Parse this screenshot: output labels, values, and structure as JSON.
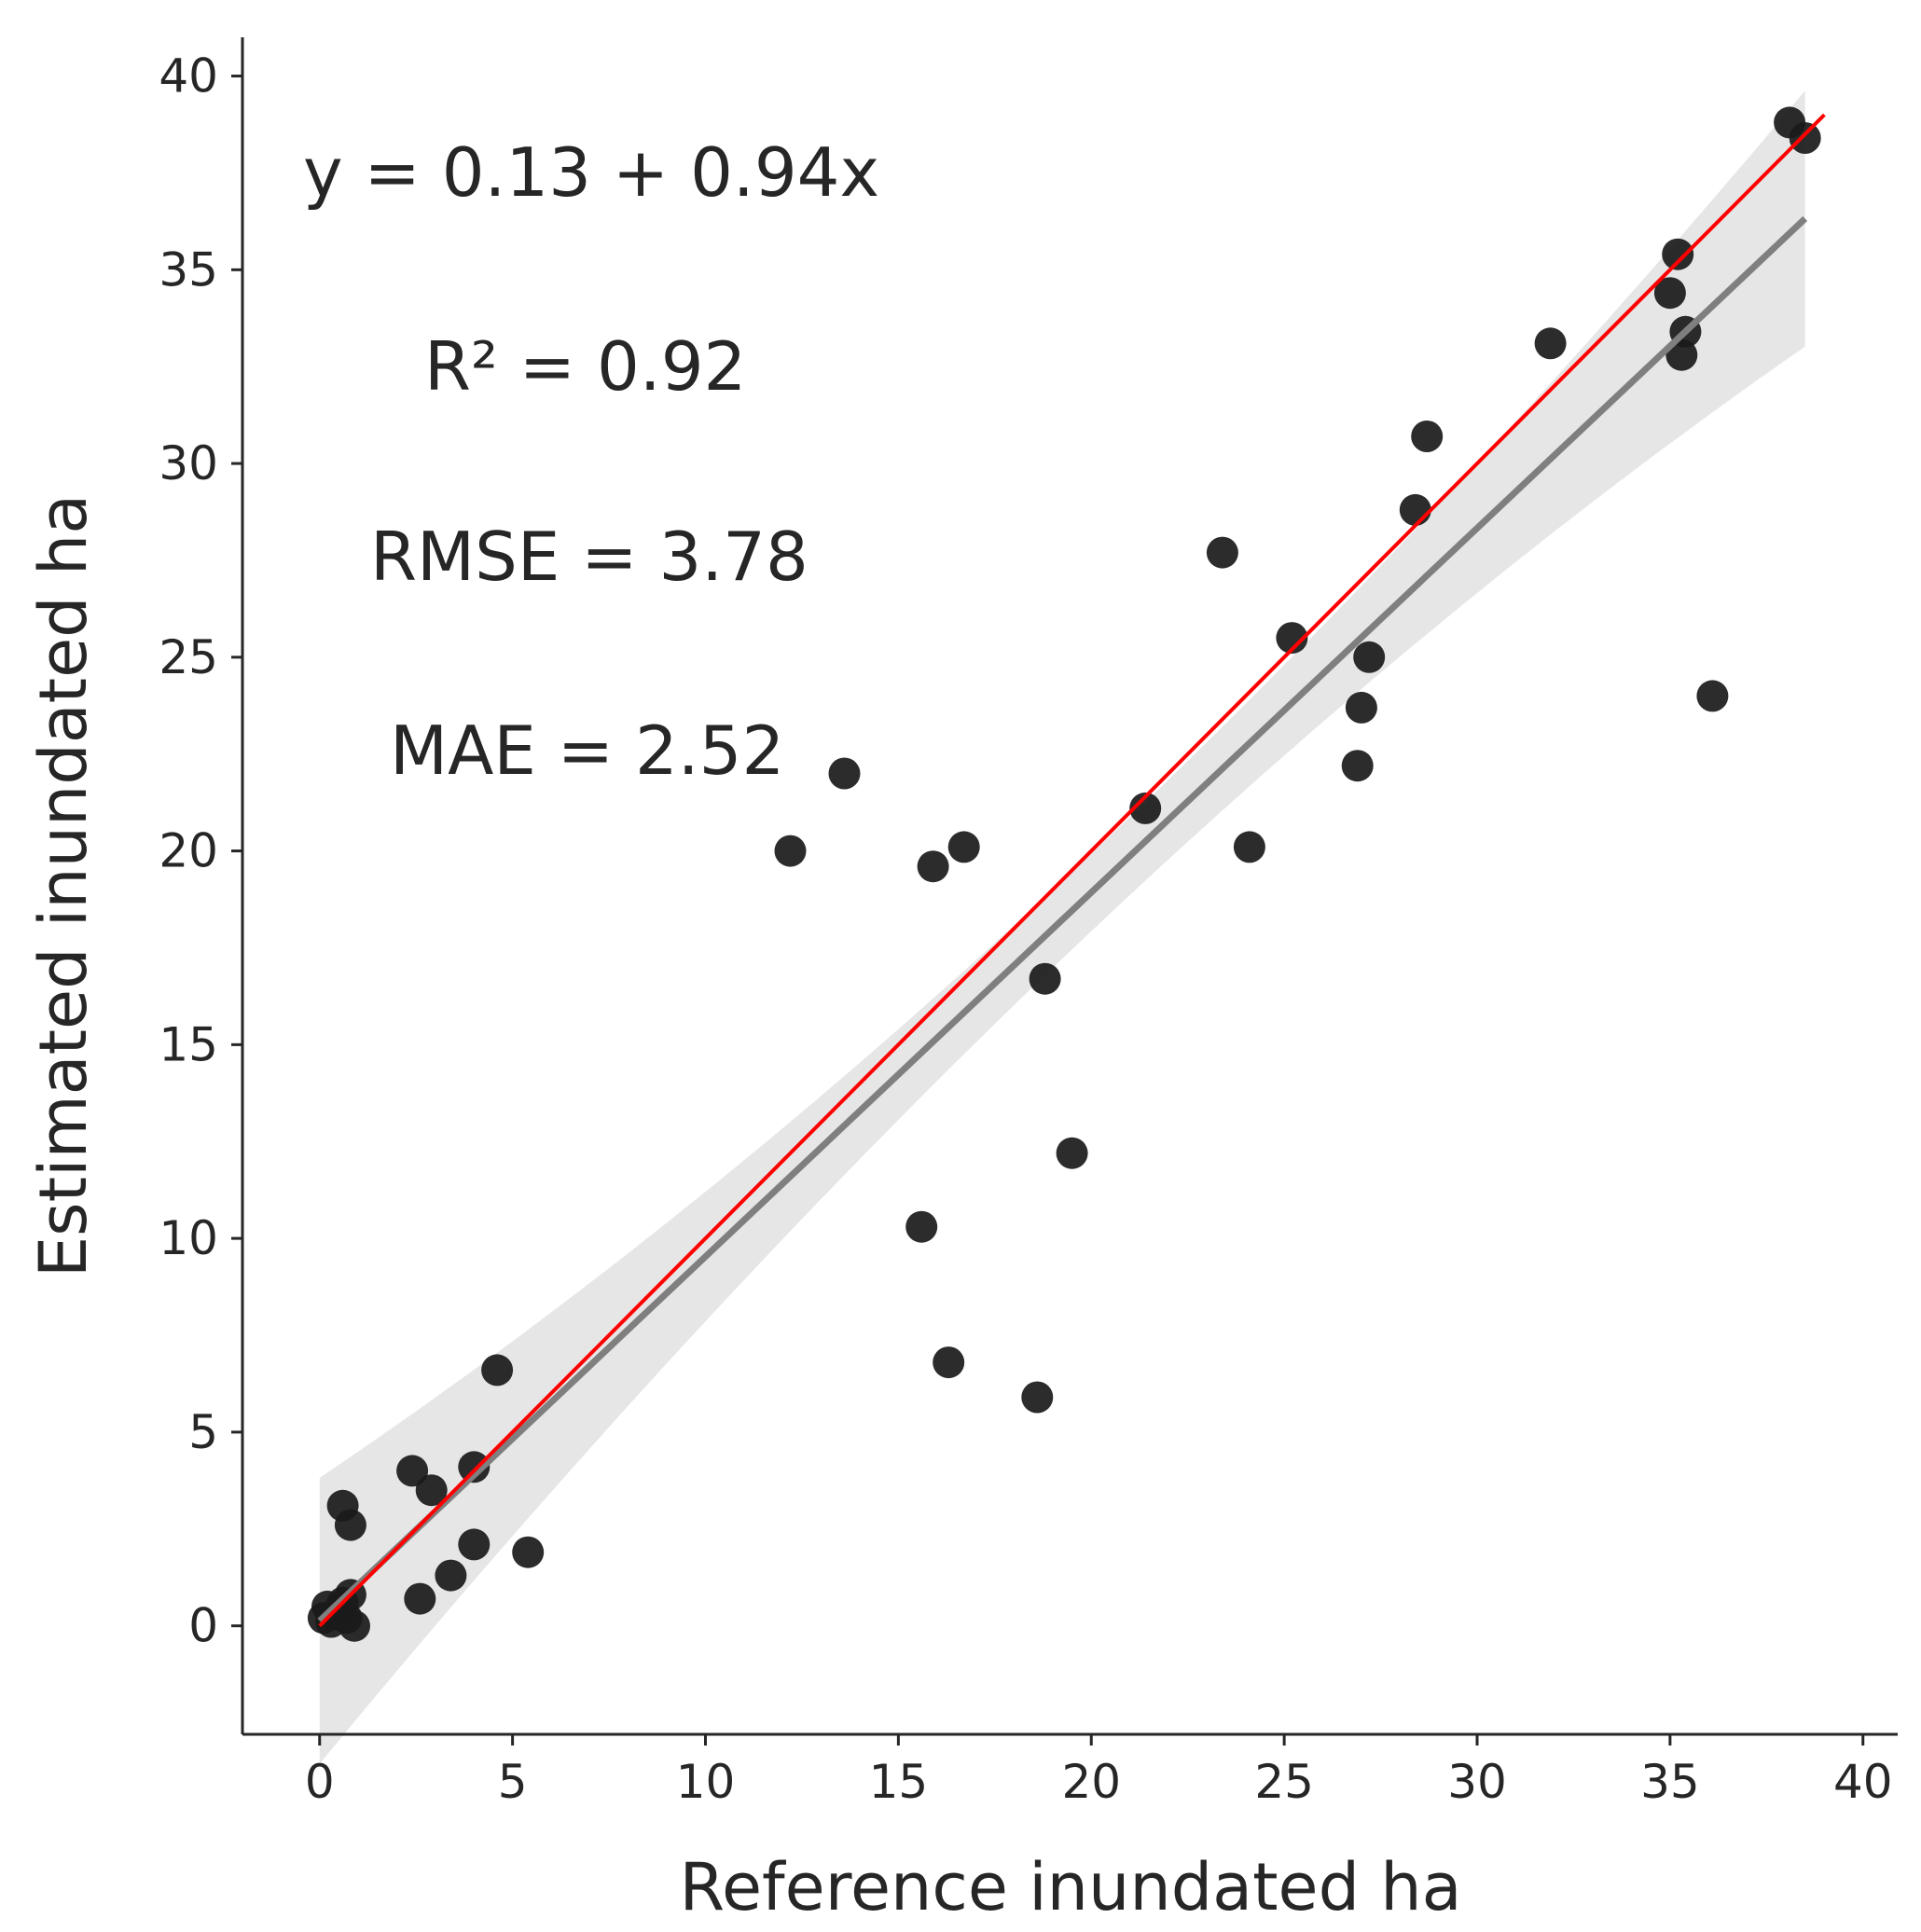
{
  "chart_data": {
    "type": "scatter",
    "xlabel": "Reference inundated ha",
    "ylabel": "Estimated inundated ha",
    "xlim": [
      -2,
      40.9
    ],
    "ylim": [
      -2.8,
      41
    ],
    "xticks": [
      0,
      5,
      10,
      15,
      20,
      25,
      30,
      35,
      40
    ],
    "yticks": [
      0,
      5,
      10,
      15,
      20,
      25,
      30,
      35,
      40
    ],
    "annotations": [
      {
        "id": "equation",
        "text": "y = 0.13 + 0.94x"
      },
      {
        "id": "r2",
        "text": "R² = 0.92"
      },
      {
        "id": "rmse",
        "text": "RMSE = 3.78"
      },
      {
        "id": "mae",
        "text": "MAE = 2.52"
      }
    ],
    "points": {
      "x": [
        0.1,
        0.2,
        0.3,
        0.4,
        0.5,
        0.6,
        0.7,
        0.8,
        0.9,
        0.6,
        0.8,
        2.4,
        2.6,
        2.9,
        3.4,
        4.0,
        4.0,
        4.6,
        5.4,
        12.2,
        13.6,
        15.6,
        15.9,
        16.3,
        16.7,
        18.6,
        18.8,
        19.5,
        21.4,
        23.4,
        24.1,
        25.2,
        26.9,
        27.0,
        27.2,
        28.4,
        28.7,
        31.9,
        35.0,
        35.2,
        35.3,
        35.4,
        36.1,
        38.1,
        38.5
      ],
      "y": [
        0.2,
        0.5,
        0.1,
        0.3,
        0.4,
        0.6,
        0.2,
        0.8,
        0.0,
        3.1,
        2.6,
        4.0,
        0.7,
        3.5,
        1.3,
        2.1,
        4.1,
        6.6,
        1.9,
        20.0,
        22.0,
        10.3,
        19.6,
        6.8,
        20.1,
        5.9,
        16.7,
        12.2,
        21.1,
        27.7,
        20.1,
        25.5,
        22.2,
        23.7,
        25.0,
        28.8,
        30.7,
        33.1,
        34.4,
        35.4,
        32.8,
        33.4,
        24.0,
        38.8,
        38.4
      ],
      "color": "#1a1a1a"
    },
    "regression": {
      "intercept": 0.13,
      "slope": 0.94,
      "x_range": [
        0,
        38.5
      ],
      "color": "#7f7f7f",
      "ci_color": "#e6e6e6"
    },
    "identity": {
      "x_range": [
        0,
        39
      ],
      "color": "#ff0000",
      "label": "1:1"
    }
  }
}
